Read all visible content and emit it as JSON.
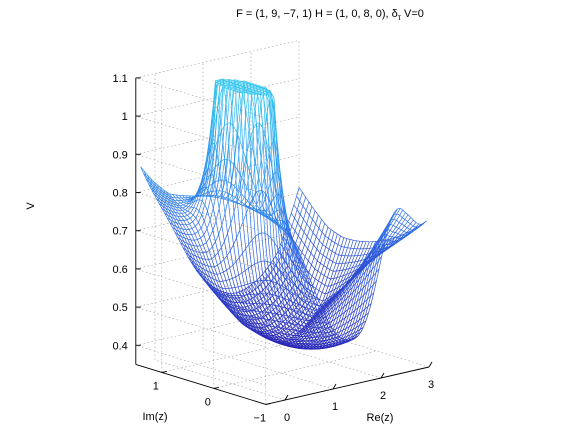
{
  "chart_data": {
    "type": "surface",
    "title_prefix": "F = (1, 9, −7, 1) H = (1, 0, 8, 0), δ",
    "title_subscript": "τ",
    "title_suffix": " V=0",
    "zlabel": "V",
    "xlabel": "Re(z)",
    "ylabel": "Im(z)",
    "z_ticks": [
      "0.4",
      "0.5",
      "0.6",
      "0.7",
      "0.8",
      "0.9",
      "1",
      "1.1"
    ],
    "x_ticks": [
      "0",
      "1",
      "2",
      "3"
    ],
    "y_ticks": [
      "−1",
      "0",
      "1"
    ],
    "xlim": [
      -0.4,
      3
    ],
    "ylim": [
      -1,
      1.5
    ],
    "zlim": [
      0.35,
      1.1
    ],
    "grid": true,
    "colormap": [
      "#2a1fb0",
      "#2f6ee8",
      "#35c6f0"
    ]
  }
}
